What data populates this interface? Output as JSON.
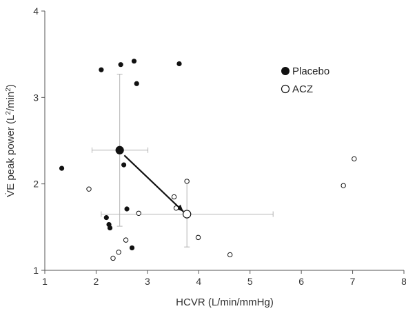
{
  "chart_data": {
    "type": "scatter",
    "xlabel": "HCVR (L/min/mmHg)",
    "ylabel_main": "V̇E peak power (L",
    "ylabel_sup1": "2",
    "ylabel_mid": "/min",
    "ylabel_sup2": "2",
    "ylabel_end": ")",
    "xlim": [
      1,
      8
    ],
    "ylim": [
      1,
      4
    ],
    "xticks": [
      "1",
      "2",
      "3",
      "4",
      "5",
      "6",
      "7",
      "8"
    ],
    "yticks": [
      "1",
      "2",
      "3",
      "4"
    ],
    "grid": false,
    "legend_position": "top-right",
    "series": [
      {
        "name": "Placebo",
        "marker": "filled",
        "color": "#111111",
        "points": [
          {
            "x": 1.33,
            "y": 2.18
          },
          {
            "x": 2.1,
            "y": 3.32
          },
          {
            "x": 2.48,
            "y": 3.38
          },
          {
            "x": 2.74,
            "y": 3.42
          },
          {
            "x": 2.79,
            "y": 3.16
          },
          {
            "x": 3.62,
            "y": 3.39
          },
          {
            "x": 2.54,
            "y": 2.22
          },
          {
            "x": 2.6,
            "y": 1.71
          },
          {
            "x": 2.2,
            "y": 1.61
          },
          {
            "x": 2.25,
            "y": 1.53
          },
          {
            "x": 2.27,
            "y": 1.49
          },
          {
            "x": 2.7,
            "y": 1.26
          }
        ]
      },
      {
        "name": "ACZ",
        "marker": "open",
        "color": "#111111",
        "points": [
          {
            "x": 1.86,
            "y": 1.94
          },
          {
            "x": 2.83,
            "y": 1.66
          },
          {
            "x": 2.58,
            "y": 1.35
          },
          {
            "x": 2.44,
            "y": 1.21
          },
          {
            "x": 2.33,
            "y": 1.14
          },
          {
            "x": 3.52,
            "y": 1.85
          },
          {
            "x": 3.56,
            "y": 1.72
          },
          {
            "x": 3.77,
            "y": 2.03
          },
          {
            "x": 3.99,
            "y": 1.38
          },
          {
            "x": 4.61,
            "y": 1.18
          },
          {
            "x": 6.82,
            "y": 1.98
          },
          {
            "x": 7.03,
            "y": 2.29
          }
        ]
      }
    ],
    "means": [
      {
        "series": "Placebo",
        "x": 2.46,
        "y": 2.39,
        "x_err": [
          1.92,
          3.01
        ],
        "y_err": [
          1.51,
          3.27
        ]
      },
      {
        "series": "ACZ",
        "x": 3.77,
        "y": 1.65,
        "x_err": [
          2.1,
          5.45
        ],
        "y_err": [
          1.27,
          2.03
        ]
      }
    ],
    "arrow": {
      "from": {
        "x": 2.55,
        "y": 2.33
      },
      "to": {
        "x": 3.7,
        "y": 1.68
      }
    },
    "errorbar_color": "#b3b3b3"
  }
}
